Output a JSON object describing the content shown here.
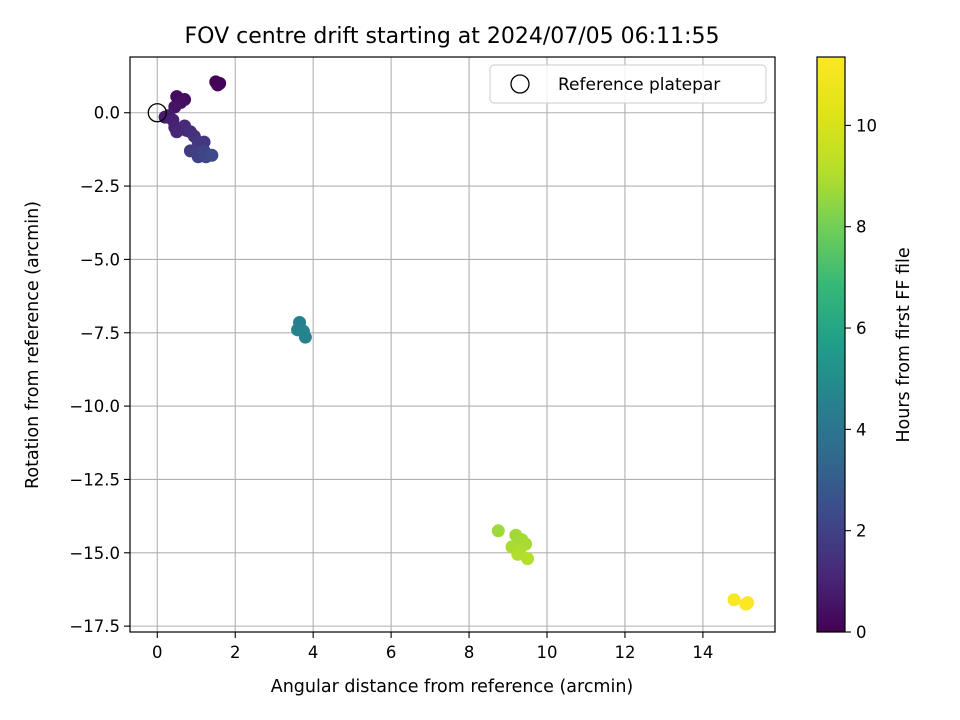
{
  "chart_data": {
    "type": "scatter",
    "title": "FOV centre drift starting at 2024/07/05 06:11:55",
    "xlabel": "Angular distance from reference (arcmin)",
    "ylabel": "Rotation from reference (arcmin)",
    "xlim": [
      -0.7,
      15.85
    ],
    "ylim": [
      -17.7,
      1.9
    ],
    "xticks": [
      0,
      2,
      4,
      6,
      8,
      10,
      12,
      14
    ],
    "yticks": [
      0.0,
      -2.5,
      -5.0,
      -7.5,
      -10.0,
      -12.5,
      -15.0,
      -17.5
    ],
    "xtick_labels": [
      "0",
      "2",
      "4",
      "6",
      "8",
      "10",
      "12",
      "14"
    ],
    "ytick_labels": [
      "0.0",
      "−2.5",
      "−5.0",
      "−7.5",
      "−10.0",
      "−12.5",
      "−15.0",
      "−17.5"
    ],
    "grid": true,
    "legend": {
      "position": "top-right",
      "entries": [
        "Reference platepar"
      ]
    },
    "colorbar": {
      "label": "Hours from first FF file",
      "range": [
        0,
        11.35
      ],
      "ticks": [
        0,
        2,
        4,
        6,
        8,
        10
      ],
      "tick_labels": [
        "0",
        "2",
        "4",
        "6",
        "8",
        "10"
      ],
      "colormap": "viridis"
    },
    "reference_point": {
      "x": 0.0,
      "y": 0.0
    },
    "points": [
      {
        "x": 1.5,
        "y": 1.05,
        "h": 0.0
      },
      {
        "x": 1.55,
        "y": 0.95,
        "h": 0.05
      },
      {
        "x": 1.6,
        "y": 1.0,
        "h": 0.1
      },
      {
        "x": 0.5,
        "y": 0.55,
        "h": 0.3
      },
      {
        "x": 0.7,
        "y": 0.45,
        "h": 0.4
      },
      {
        "x": 0.6,
        "y": 0.35,
        "h": 0.45
      },
      {
        "x": 0.45,
        "y": 0.2,
        "h": 0.55
      },
      {
        "x": 0.2,
        "y": -0.15,
        "h": 0.75
      },
      {
        "x": 0.3,
        "y": -0.1,
        "h": 0.8
      },
      {
        "x": 0.4,
        "y": -0.25,
        "h": 0.9
      },
      {
        "x": 0.45,
        "y": -0.5,
        "h": 1.0
      },
      {
        "x": 0.5,
        "y": -0.65,
        "h": 1.1
      },
      {
        "x": 0.7,
        "y": -0.45,
        "h": 1.15
      },
      {
        "x": 0.75,
        "y": -0.6,
        "h": 1.25
      },
      {
        "x": 0.85,
        "y": -0.65,
        "h": 1.35
      },
      {
        "x": 0.95,
        "y": -0.8,
        "h": 1.45
      },
      {
        "x": 1.05,
        "y": -1.0,
        "h": 1.6
      },
      {
        "x": 1.2,
        "y": -1.0,
        "h": 1.7
      },
      {
        "x": 0.85,
        "y": -1.3,
        "h": 1.8
      },
      {
        "x": 1.0,
        "y": -1.35,
        "h": 1.9
      },
      {
        "x": 1.05,
        "y": -1.5,
        "h": 2.0
      },
      {
        "x": 1.2,
        "y": -1.3,
        "h": 2.1
      },
      {
        "x": 1.25,
        "y": -1.5,
        "h": 2.2
      },
      {
        "x": 1.4,
        "y": -1.45,
        "h": 2.3
      },
      {
        "x": 3.65,
        "y": -7.15,
        "h": 4.4
      },
      {
        "x": 3.6,
        "y": -7.4,
        "h": 4.5
      },
      {
        "x": 3.75,
        "y": -7.45,
        "h": 4.55
      },
      {
        "x": 3.8,
        "y": -7.65,
        "h": 4.6
      },
      {
        "x": 8.75,
        "y": -14.25,
        "h": 8.7
      },
      {
        "x": 9.2,
        "y": -14.4,
        "h": 8.75
      },
      {
        "x": 9.35,
        "y": -14.55,
        "h": 8.8
      },
      {
        "x": 9.45,
        "y": -14.7,
        "h": 8.85
      },
      {
        "x": 9.1,
        "y": -14.8,
        "h": 8.9
      },
      {
        "x": 9.3,
        "y": -14.9,
        "h": 8.95
      },
      {
        "x": 9.25,
        "y": -15.05,
        "h": 9.0
      },
      {
        "x": 9.5,
        "y": -15.2,
        "h": 9.05
      },
      {
        "x": 14.8,
        "y": -16.6,
        "h": 11.25
      },
      {
        "x": 15.1,
        "y": -16.75,
        "h": 11.3
      },
      {
        "x": 15.15,
        "y": -16.7,
        "h": 11.35
      }
    ]
  }
}
